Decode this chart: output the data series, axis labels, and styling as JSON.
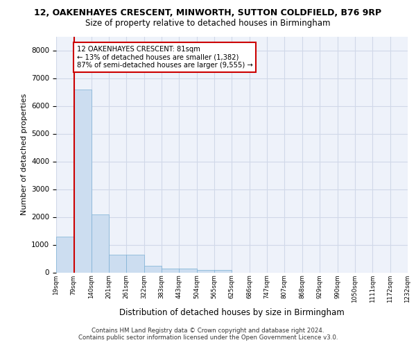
{
  "title_line1": "12, OAKENHAYES CRESCENT, MINWORTH, SUTTON COLDFIELD, B76 9RP",
  "title_line2": "Size of property relative to detached houses in Birmingham",
  "xlabel": "Distribution of detached houses by size in Birmingham",
  "ylabel": "Number of detached properties",
  "footer_line1": "Contains HM Land Registry data © Crown copyright and database right 2024.",
  "footer_line2": "Contains public sector information licensed under the Open Government Licence v3.0.",
  "annotation_title": "12 OAKENHAYES CRESCENT: 81sqm",
  "annotation_line2": "← 13% of detached houses are smaller (1,382)",
  "annotation_line3": "87% of semi-detached houses are larger (9,555) →",
  "property_size": 81,
  "bar_color": "#ccddf0",
  "bar_edge_color": "#7aafd4",
  "vline_color": "#cc0000",
  "annotation_box_color": "#cc0000",
  "grid_color": "#d0d8e8",
  "bg_color": "#eef2fa",
  "bin_edges": [
    19,
    79,
    140,
    201,
    261,
    322,
    383,
    443,
    504,
    565,
    625,
    686,
    747,
    807,
    868,
    929,
    990,
    1050,
    1111,
    1172,
    1232
  ],
  "bin_labels": [
    "19sqm",
    "79sqm",
    "140sqm",
    "201sqm",
    "261sqm",
    "322sqm",
    "383sqm",
    "443sqm",
    "504sqm",
    "565sqm",
    "625sqm",
    "686sqm",
    "747sqm",
    "807sqm",
    "868sqm",
    "929sqm",
    "990sqm",
    "1050sqm",
    "1111sqm",
    "1172sqm",
    "1232sqm"
  ],
  "bar_heights": [
    1300,
    6600,
    2080,
    650,
    650,
    250,
    130,
    130,
    90,
    90,
    0,
    0,
    0,
    0,
    0,
    0,
    0,
    0,
    0,
    0
  ],
  "ylim": [
    0,
    8500
  ],
  "yticks": [
    0,
    1000,
    2000,
    3000,
    4000,
    5000,
    6000,
    7000,
    8000
  ]
}
